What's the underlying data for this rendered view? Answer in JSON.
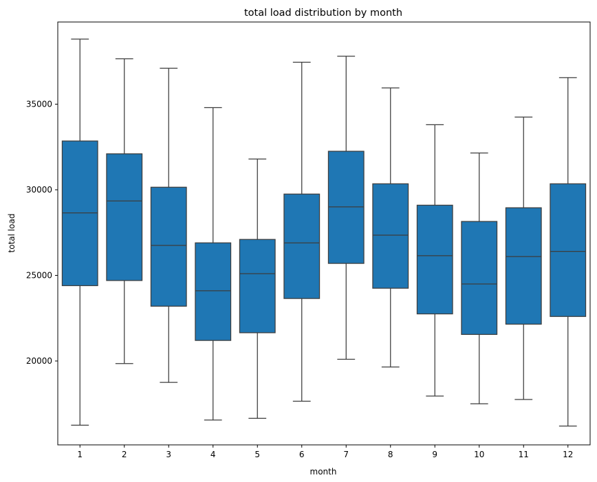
{
  "chart_data": {
    "type": "box",
    "title": "total load distribution by month",
    "xlabel": "month",
    "ylabel": "total load",
    "categories": [
      "1",
      "2",
      "3",
      "4",
      "5",
      "6",
      "7",
      "8",
      "9",
      "10",
      "11",
      "12"
    ],
    "y_ticks": [
      20000,
      25000,
      30000,
      35000
    ],
    "y_tick_labels": [
      "20000",
      "25000",
      "30000",
      "35000"
    ],
    "ylim": [
      15100,
      39800
    ],
    "grid": false,
    "box_color": "#1f77b4",
    "line_color": "#3c3c3c",
    "boxes": [
      {
        "category": "1",
        "whislo": 16250,
        "q1": 24400,
        "med": 28650,
        "q3": 32850,
        "whishi": 38800
      },
      {
        "category": "2",
        "whislo": 19850,
        "q1": 24700,
        "med": 29350,
        "q3": 32100,
        "whishi": 37650
      },
      {
        "category": "3",
        "whislo": 18750,
        "q1": 23200,
        "med": 26750,
        "q3": 30150,
        "whishi": 37100
      },
      {
        "category": "4",
        "whislo": 16550,
        "q1": 21200,
        "med": 24100,
        "q3": 26900,
        "whishi": 34800
      },
      {
        "category": "5",
        "whislo": 16650,
        "q1": 21650,
        "med": 25100,
        "q3": 27100,
        "whishi": 31800
      },
      {
        "category": "6",
        "whislo": 17650,
        "q1": 23650,
        "med": 26900,
        "q3": 29750,
        "whishi": 37450
      },
      {
        "category": "7",
        "whislo": 20100,
        "q1": 25700,
        "med": 29000,
        "q3": 32250,
        "whishi": 37800
      },
      {
        "category": "8",
        "whislo": 19650,
        "q1": 24250,
        "med": 27350,
        "q3": 30350,
        "whishi": 35950
      },
      {
        "category": "9",
        "whislo": 17950,
        "q1": 22750,
        "med": 26150,
        "q3": 29100,
        "whishi": 33800
      },
      {
        "category": "10",
        "whislo": 17500,
        "q1": 21550,
        "med": 24500,
        "q3": 28150,
        "whishi": 32150
      },
      {
        "category": "11",
        "whislo": 17750,
        "q1": 22150,
        "med": 26100,
        "q3": 28950,
        "whishi": 34250
      },
      {
        "category": "12",
        "whislo": 16200,
        "q1": 22600,
        "med": 26400,
        "q3": 30350,
        "whishi": 36550
      }
    ]
  }
}
